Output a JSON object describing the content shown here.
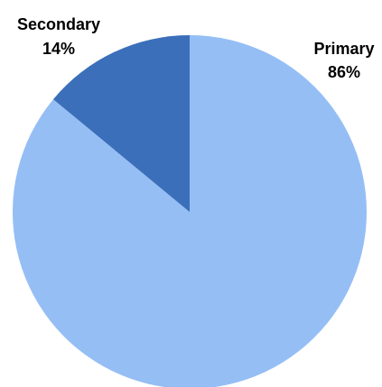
{
  "chart_data": {
    "type": "pie",
    "title": "",
    "slices": [
      {
        "name": "Primary",
        "value": 86,
        "value_label": "86%",
        "color": "#95BEF5"
      },
      {
        "name": "Secondary",
        "value": 14,
        "value_label": "14%",
        "color": "#3B6FBA"
      }
    ],
    "start": "12 o'clock",
    "direction": "clockwise",
    "legend": "none",
    "labels": "outside, name above percentage"
  }
}
